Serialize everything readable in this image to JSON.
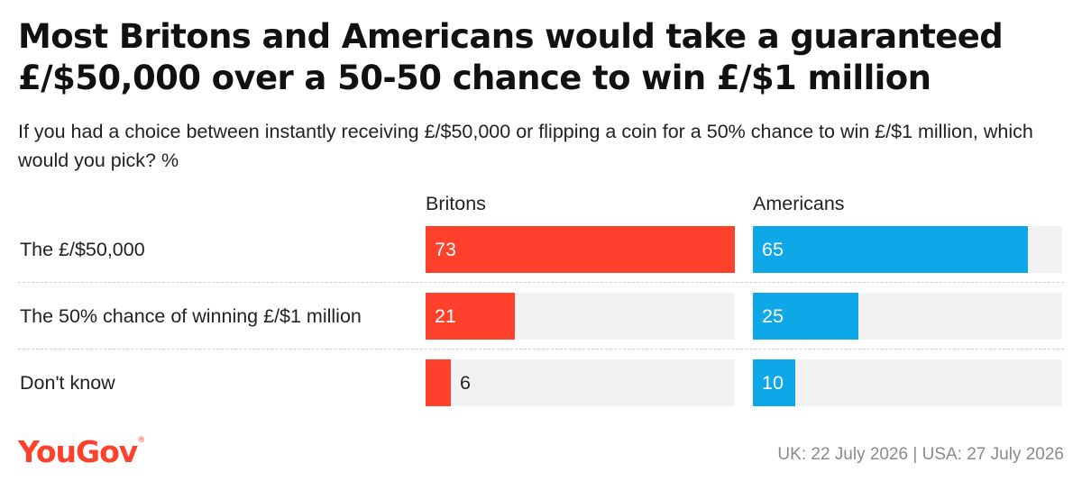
{
  "chart_data": {
    "type": "bar",
    "title": "Most Britons and Americans would take a guaranteed £/$50,000 over a 50-50 chance to win £/$1 million",
    "subtitle": "If you had a choice between instantly receiving £/$50,000 or flipping a coin for a 50% chance to win £/$1 million, which would you pick? %",
    "categories": [
      "The £/$50,000",
      "The 50% chance of winning £/$1 million",
      "Don't know"
    ],
    "series": [
      {
        "name": "Britons",
        "values": [
          73,
          21,
          6
        ],
        "color": "#ff412c"
      },
      {
        "name": "Americans",
        "values": [
          65,
          25,
          10
        ],
        "color": "#0ea8e9"
      }
    ],
    "xlim": [
      0,
      73
    ],
    "grid": false,
    "legend": "column headers"
  },
  "branding": {
    "logo": "YouGov",
    "logo_color": "#ff412c"
  },
  "footer": {
    "source": "UK: 22 July 2026 | USA: 27 July 2026"
  }
}
